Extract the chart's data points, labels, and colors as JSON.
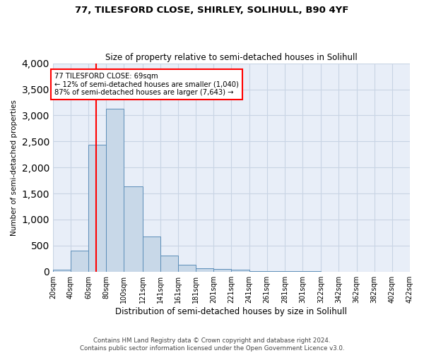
{
  "title1": "77, TILESFORD CLOSE, SHIRLEY, SOLIHULL, B90 4YF",
  "title2": "Size of property relative to semi-detached houses in Solihull",
  "xlabel": "Distribution of semi-detached houses by size in Solihull",
  "ylabel": "Number of semi-detached properties",
  "footer1": "Contains HM Land Registry data © Crown copyright and database right 2024.",
  "footer2": "Contains public sector information licensed under the Open Government Licence v3.0.",
  "annotation_line1": "77 TILESFORD CLOSE: 69sqm",
  "annotation_line2": "← 12% of semi-detached houses are smaller (1,040)",
  "annotation_line3": "87% of semi-detached houses are larger (7,643) →",
  "bar_color": "#c8d8e8",
  "bar_edge_color": "#5b8db8",
  "annotation_box_color": "white",
  "annotation_box_edge": "red",
  "vline_color": "red",
  "grid_color": "#c8d4e4",
  "bg_color": "#e8eef8",
  "property_sqm": 69,
  "bins": [
    20,
    40,
    60,
    80,
    100,
    121,
    141,
    161,
    181,
    201,
    221,
    241,
    261,
    281,
    301,
    322,
    342,
    362,
    382,
    402,
    422
  ],
  "bin_labels": [
    "20sqm",
    "40sqm",
    "60sqm",
    "80sqm",
    "100sqm",
    "121sqm",
    "141sqm",
    "161sqm",
    "181sqm",
    "201sqm",
    "221sqm",
    "241sqm",
    "261sqm",
    "281sqm",
    "301sqm",
    "322sqm",
    "342sqm",
    "362sqm",
    "382sqm",
    "402sqm",
    "422sqm"
  ],
  "heights": [
    30,
    400,
    2430,
    3130,
    1640,
    680,
    305,
    125,
    65,
    55,
    40,
    15,
    10,
    5,
    3,
    2,
    1,
    1,
    0,
    0
  ],
  "ylim": [
    0,
    4000
  ],
  "yticks": [
    0,
    500,
    1000,
    1500,
    2000,
    2500,
    3000,
    3500,
    4000
  ]
}
